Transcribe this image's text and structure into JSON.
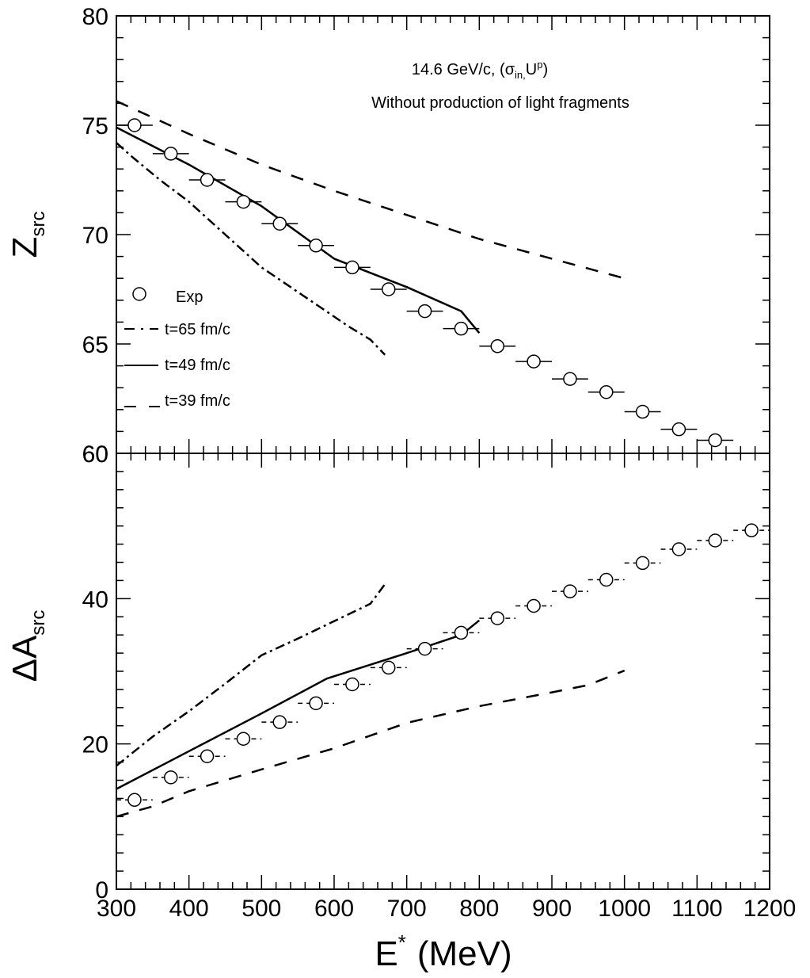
{
  "chart_data": {
    "type": "scatter",
    "x_axis": {
      "label_main": "E",
      "label_sup": "*",
      "label_unit": "(MeV)",
      "range": [
        300,
        1200
      ],
      "ticks": [
        "300",
        "400",
        "500",
        "600",
        "700",
        "800",
        "900",
        "1000",
        "1100",
        "1200"
      ]
    },
    "panels": [
      {
        "id": "top",
        "y_label_main": "Z",
        "y_label_sub": "src",
        "ylim": [
          60,
          80
        ],
        "ticks": [
          "80",
          "75",
          "70",
          "65",
          "60"
        ],
        "annotation": {
          "line1_prefix": "14.6 GeV/c, (σ",
          "line1_sub1": "in,",
          "line1_mid": "U",
          "line1_sup": "p",
          "line1_suffix": ")",
          "line2": "Without production of light fragments"
        },
        "legend": [
          {
            "label": "Exp",
            "style": "circle"
          },
          {
            "label": "t=65 fm/c",
            "style": "dashdot"
          },
          {
            "label": "t=49 fm/c",
            "style": "solid"
          },
          {
            "label": "t=39 fm/c",
            "style": "dashed"
          }
        ],
        "exp": {
          "x": [
            325,
            375,
            425,
            475,
            525,
            575,
            625,
            675,
            725,
            775,
            825,
            875,
            925,
            975,
            1025,
            1075,
            1125
          ],
          "y": [
            75.0,
            73.7,
            72.5,
            71.5,
            70.5,
            69.5,
            68.5,
            67.5,
            66.5,
            65.7,
            64.9,
            64.2,
            63.4,
            62.8,
            61.9,
            61.1,
            60.6
          ],
          "xerr": 25
        },
        "series": [
          {
            "style": "dashdot",
            "x": [
              300,
              320,
              360,
              400,
              450,
              500,
              540,
              580,
              620,
              650,
              670
            ],
            "y": [
              74.2,
              73.6,
              72.5,
              71.5,
              70.0,
              68.5,
              67.6,
              66.7,
              65.8,
              65.2,
              64.5
            ]
          },
          {
            "style": "solid",
            "x": [
              300,
              400,
              500,
              600,
              700,
              775,
              800
            ],
            "y": [
              74.9,
              73.2,
              71.3,
              68.9,
              67.6,
              66.5,
              65.5
            ]
          },
          {
            "style": "dashed",
            "x": [
              300,
              400,
              500,
              600,
              700,
              800,
              900,
              1000
            ],
            "y": [
              76.1,
              74.6,
              73.2,
              72.0,
              70.9,
              69.8,
              68.9,
              68.0
            ]
          }
        ]
      },
      {
        "id": "bottom",
        "y_label_main": "ΔA",
        "y_label_sub": "src",
        "ylim": [
          0,
          60
        ],
        "ticks": [
          "60",
          "40",
          "20",
          "0"
        ],
        "exp": {
          "x": [
            325,
            375,
            425,
            475,
            525,
            575,
            625,
            675,
            725,
            775,
            825,
            875,
            925,
            975,
            1025,
            1075,
            1125,
            1175
          ],
          "y": [
            12.3,
            15.4,
            18.3,
            20.7,
            23.0,
            25.6,
            28.2,
            30.5,
            33.1,
            35.3,
            37.3,
            39.0,
            41.0,
            42.6,
            44.9,
            46.8,
            48.0,
            49.4
          ],
          "xerr": 25
        },
        "series": [
          {
            "style": "dashdot",
            "x": [
              300,
              350,
              400,
              450,
              500,
              550,
              600,
              650,
              670
            ],
            "y": [
              17.0,
              21.0,
              24.5,
              28.3,
              32.2,
              34.5,
              36.9,
              39.3,
              42.0
            ]
          },
          {
            "style": "solid",
            "x": [
              300,
              400,
              500,
              590,
              700,
              775,
              800
            ],
            "y": [
              13.8,
              19.0,
              24.2,
              29.0,
              32.5,
              35.0,
              37.0
            ]
          },
          {
            "style": "dashed",
            "x": [
              300,
              350,
              400,
              500,
              600,
              700,
              800,
              900,
              950,
              1000
            ],
            "y": [
              10.0,
              11.4,
              13.5,
              16.5,
              19.4,
              22.9,
              25.2,
              27.1,
              28.1,
              30.1
            ]
          }
        ]
      }
    ]
  }
}
